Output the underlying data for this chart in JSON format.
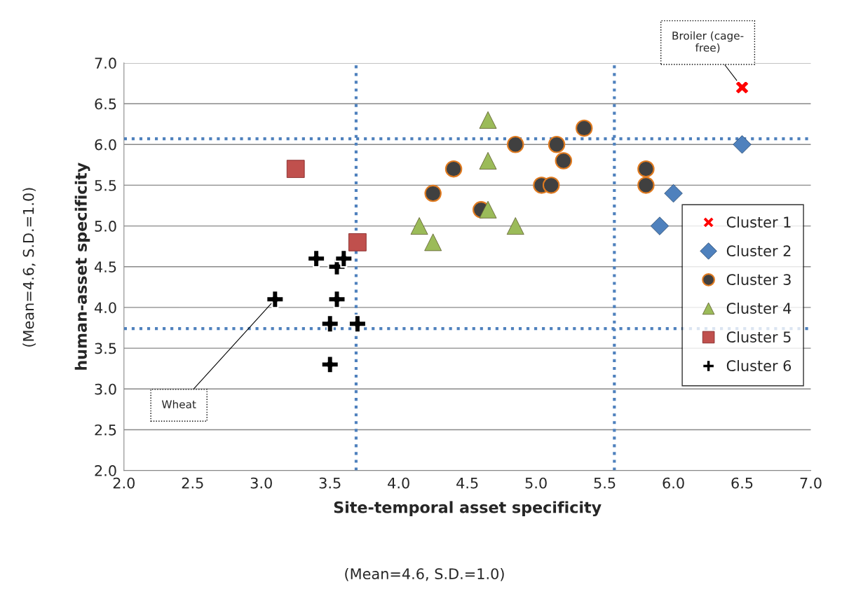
{
  "chart_data": {
    "type": "scatter",
    "xlabel": "Site-temporal asset specificity",
    "ylabel": "human-asset specificity",
    "xlim": [
      2.0,
      7.0
    ],
    "ylim": [
      2.0,
      7.0
    ],
    "xticks": [
      {
        "value": 2,
        "label": "2.0"
      },
      2.5,
      {
        "value": 3,
        "label": "3.0"
      },
      3.5,
      {
        "value": 4,
        "label": "4.0"
      },
      4.5,
      {
        "value": 5,
        "label": "5.0"
      },
      5.5,
      {
        "value": 6,
        "label": "6.0"
      },
      6.5,
      {
        "value": 7,
        "label": "7.0"
      }
    ],
    "yticks": [
      {
        "value": 2,
        "label": "2.0"
      },
      2.5,
      {
        "value": 3,
        "label": "3.0"
      },
      3.5,
      {
        "value": 4,
        "label": "4.0"
      },
      4.5,
      {
        "value": 5,
        "label": "5.0"
      },
      5.5,
      {
        "value": 6,
        "label": "6.0"
      },
      6.5,
      {
        "value": 7,
        "label": "7.0"
      }
    ],
    "grid": "y",
    "legend": "right",
    "series": [
      {
        "name": "Cluster 1",
        "color": "#ff0000",
        "marker": "x",
        "x": [
          6.5
        ],
        "values": [
          6.7
        ]
      },
      {
        "name": "Cluster 2",
        "color": "#4f81bd",
        "marker": "diamond",
        "x": [
          6.5,
          6.0,
          5.9
        ],
        "values": [
          6.0,
          5.4,
          5.0
        ]
      },
      {
        "name": "Cluster 3",
        "color": "#404040",
        "marker": "circle",
        "x": [
          4.25,
          4.4,
          4.6,
          4.85,
          5.04,
          5.11,
          5.15,
          5.2,
          5.35,
          5.8,
          5.8
        ],
        "values": [
          5.4,
          5.7,
          5.2,
          6.0,
          5.5,
          5.5,
          6.0,
          5.8,
          6.2,
          5.7,
          5.5
        ]
      },
      {
        "name": "Cluster 4",
        "color": "#9bbb59",
        "marker": "triangle",
        "x": [
          4.15,
          4.25,
          4.65,
          4.65,
          4.65,
          4.85
        ],
        "values": [
          5.0,
          4.8,
          6.3,
          5.8,
          5.2,
          5.0
        ]
      },
      {
        "name": "Cluster 5",
        "color": "#c0504d",
        "marker": "square",
        "x": [
          3.25,
          3.7
        ],
        "values": [
          5.7,
          4.8
        ]
      },
      {
        "name": "Cluster 6",
        "color": "#000000",
        "marker": "cross",
        "x": [
          3.1,
          3.4,
          3.55,
          3.6,
          3.55,
          3.5,
          3.7,
          3.5
        ],
        "values": [
          4.1,
          4.6,
          4.5,
          4.6,
          4.1,
          3.8,
          3.8,
          3.3
        ]
      }
    ],
    "ref_lines": [
      {
        "axis": "x",
        "value": 3.69,
        "color": "#4f81bd",
        "line_style": "dotted"
      },
      {
        "axis": "x",
        "value": 5.57,
        "color": "#4f81bd",
        "line_style": "dotted"
      },
      {
        "axis": "y",
        "value": 6.07,
        "color": "#4f81bd",
        "line_style": "dotted"
      },
      {
        "axis": "y",
        "value": 3.74,
        "color": "#4f81bd",
        "line_style": "dotted"
      }
    ],
    "annotations": [
      {
        "text": "Broiler (cage-\nfree)",
        "x": 6.5,
        "y": 6.7
      },
      {
        "text": "Wheat",
        "x": 3.1,
        "y": 4.1
      },
      "(Mean=4.6, S.D.=1.0)",
      "(Mean=4.6, S.D.=1.0)"
    ]
  }
}
